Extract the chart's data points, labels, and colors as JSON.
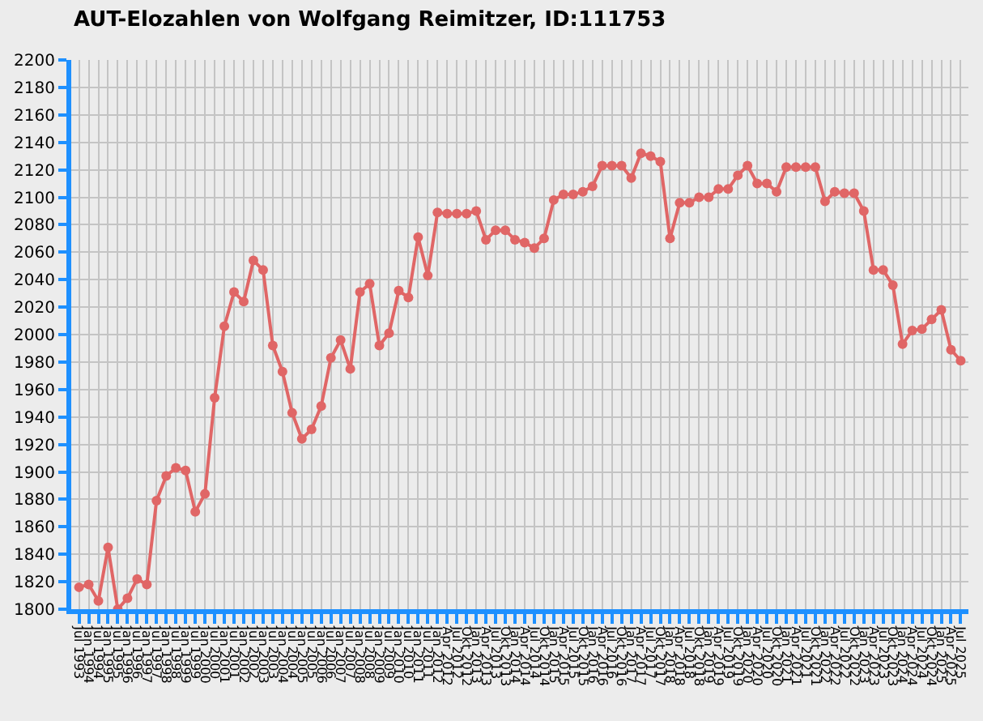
{
  "chart_data": {
    "type": "line",
    "title": "AUT-Elozahlen von Wolfgang Reimitzer, ID:111753",
    "categories": [
      "Jul 1993",
      "Jan 1994",
      "Jul 1994",
      "Jan 1995",
      "Jul 1995",
      "Jan 1996",
      "Jul 1996",
      "Jan 1997",
      "Jul 1997",
      "Jan 1998",
      "Jul 1998",
      "Jan 1999",
      "Jul 1999",
      "Jan 2000",
      "Jul 2000",
      "Jan 2001",
      "Jul 2001",
      "Jan 2002",
      "Jul 2002",
      "Jan 2003",
      "Jul 2003",
      "Jan 2004",
      "Jul 2004",
      "Jan 2005",
      "Jul 2005",
      "Jan 2006",
      "Jul 2006",
      "Jan 2007",
      "Jul 2007",
      "Jan 2008",
      "Jul 2008",
      "Jan 2009",
      "Jul 2009",
      "Jan 2010",
      "Jul 2010",
      "Jan 2011",
      "Jul 2011",
      "Jan 2012",
      "Apr 2012",
      "Jul 2012",
      "Okt 2012",
      "Jan 2013",
      "Apr 2013",
      "Jul 2013",
      "Okt 2013",
      "Jan 2014",
      "Apr 2014",
      "Jul 2014",
      "Okt 2014",
      "Jan 2015",
      "Apr 2015",
      "Jul 2015",
      "Okt 2015",
      "Jan 2016",
      "Apr 2016",
      "Jul 2016",
      "Okt 2016",
      "Jan 2017",
      "Apr 2017",
      "Jul 2017",
      "Okt 2017",
      "Jan 2018",
      "Apr 2018",
      "Jul 2018",
      "Okt 2018",
      "Jan 2019",
      "Apr 2019",
      "Jul 2019",
      "Okt 2019",
      "Jan 2020",
      "Apr 2020",
      "Jul 2020",
      "Okt 2020",
      "Jan 2021",
      "Apr 2021",
      "Jul 2021",
      "Okt 2021",
      "Jan 2022",
      "Apr 2022",
      "Jul 2022",
      "Okt 2022",
      "Jan 2023",
      "Apr 2023",
      "Jul 2023",
      "Okt 2023",
      "Jan 2024",
      "Apr 2024",
      "Jul 2024",
      "Okt 2024",
      "Jan 2025",
      "Apr 2025",
      "Jul 2025"
    ],
    "series": [
      {
        "color": "#e06666",
        "values": [
          1816,
          1818,
          1806,
          1845,
          1800,
          1808,
          1822,
          1818,
          1879,
          1897,
          1903,
          1901,
          1871,
          1884,
          1954,
          2006,
          2031,
          2024,
          2054,
          2047,
          1992,
          1973,
          1943,
          1924,
          1931,
          1948,
          1983,
          1996,
          1975,
          2031,
          2037,
          1992,
          2001,
          2032,
          2027,
          2071,
          2043,
          2089,
          2088,
          2088,
          2088,
          2090,
          2069,
          2076,
          2076,
          2069,
          2067,
          2063,
          2070,
          2098,
          2102,
          2102,
          2104,
          2108,
          2123,
          2123,
          2123,
          2114,
          2132,
          2130,
          2126,
          2070,
          2096,
          2096,
          2100,
          2100,
          2106,
          2106,
          2116,
          2123,
          2110,
          2110,
          2104,
          2122,
          2122,
          2122,
          2122,
          2097,
          2104,
          2103,
          2103,
          2090,
          2047,
          2047,
          2036,
          1993,
          2003,
          2004,
          2011,
          2018,
          1989,
          1981
        ]
      }
    ],
    "ylim": [
      1800,
      2200
    ],
    "yticks": [
      1800,
      1820,
      1840,
      1860,
      1880,
      1900,
      1920,
      1940,
      1960,
      1980,
      2000,
      2020,
      2040,
      2060,
      2080,
      2100,
      2120,
      2140,
      2160,
      2180,
      2200
    ],
    "grid": true,
    "marker": "circle",
    "line_style": "solid",
    "legend": false
  }
}
